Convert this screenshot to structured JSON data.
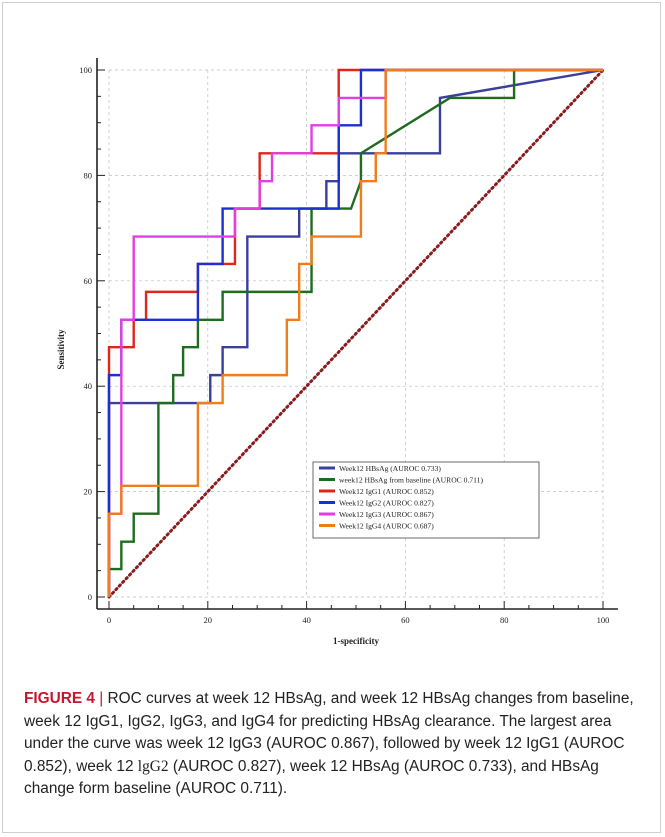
{
  "chart_data": {
    "type": "line",
    "xlabel": "1-specificity",
    "ylabel": "Sensitivity",
    "xlim": [
      0,
      100
    ],
    "ylim": [
      0,
      100
    ],
    "x_ticks": [
      0,
      20,
      40,
      60,
      80,
      100
    ],
    "y_ticks": [
      0,
      20,
      40,
      60,
      80,
      100
    ],
    "x_tick_labels": [
      "0",
      "20",
      "40",
      "60",
      "80",
      "100"
    ],
    "y_tick_labels": [
      "0",
      "20",
      "40",
      "60",
      "80",
      "100"
    ],
    "grid": true,
    "legend_position": "bottom-right",
    "series": [
      {
        "name": "Week12 HBsAg (AUROC 0.733)",
        "color": "#3a3f9c",
        "x": [
          0,
          0,
          20.5,
          20.5,
          23,
          23,
          28,
          28,
          38.5,
          38.5,
          44,
          44,
          46.5,
          46.5,
          56,
          56,
          67,
          67,
          100
        ],
        "y": [
          0,
          36.8,
          36.8,
          42.1,
          42.1,
          47.4,
          47.4,
          68.4,
          68.4,
          73.7,
          73.7,
          78.9,
          78.9,
          84.2,
          84.2,
          84.2,
          84.2,
          94.7,
          100
        ]
      },
      {
        "name": "week12 HBsAg from baseline (AUROC 0.711)",
        "color": "#1f6b1f",
        "x": [
          0,
          0,
          2.5,
          2.5,
          5,
          5,
          10,
          10,
          13,
          13,
          15,
          15,
          18,
          18,
          23,
          23,
          41,
          41,
          49,
          51,
          51,
          69,
          82,
          82,
          100
        ],
        "y": [
          0,
          5.3,
          5.3,
          10.5,
          10.5,
          15.8,
          15.8,
          36.8,
          36.8,
          42.1,
          42.1,
          47.4,
          47.4,
          52.6,
          52.6,
          57.9,
          57.9,
          73.7,
          73.7,
          78.9,
          84.2,
          94.7,
          94.7,
          100,
          100
        ]
      },
      {
        "name": "Week12 IgG1 (AUROC 0.852)",
        "color": "#e0251b",
        "x": [
          0,
          0,
          5,
          5,
          7.5,
          7.5,
          18,
          18,
          25.5,
          25.5,
          30.5,
          30.5,
          46.5,
          46.5,
          100
        ],
        "y": [
          0,
          47.4,
          47.4,
          52.6,
          52.6,
          57.9,
          57.9,
          63.2,
          63.2,
          73.7,
          73.7,
          84.2,
          84.2,
          100,
          100
        ]
      },
      {
        "name": "Week12 IgG2 (AUROC 0.827)",
        "color": "#1c2fd1",
        "x": [
          0,
          0,
          2.5,
          2.5,
          18,
          18,
          23,
          23,
          46.5,
          46.5,
          51,
          51,
          100
        ],
        "y": [
          0,
          42.1,
          42.1,
          52.6,
          52.6,
          63.2,
          63.2,
          73.7,
          73.7,
          89.5,
          89.5,
          100,
          100
        ]
      },
      {
        "name": "Week12 IgG3 (AUROC 0.867)",
        "color": "#e23fe0",
        "x": [
          0,
          0,
          2.5,
          2.5,
          5,
          5,
          25.5,
          25.5,
          30.5,
          30.5,
          33,
          33,
          41,
          41,
          46.5,
          46.5,
          49,
          49,
          56,
          56,
          100
        ],
        "y": [
          0,
          15.8,
          15.8,
          52.6,
          52.6,
          68.4,
          68.4,
          73.7,
          73.7,
          78.9,
          78.9,
          84.2,
          84.2,
          89.5,
          89.5,
          94.7,
          94.7,
          94.7,
          94.7,
          100,
          100
        ]
      },
      {
        "name": "Week12 IgG4 (AUROC 0.687)",
        "color": "#f07d1a",
        "x": [
          0,
          0,
          2.5,
          2.5,
          18,
          18,
          23,
          23,
          36,
          36,
          38.5,
          38.5,
          41,
          41,
          51,
          51,
          54,
          54,
          56,
          56,
          100
        ],
        "y": [
          0,
          15.8,
          15.8,
          21.1,
          21.1,
          36.8,
          36.8,
          42.1,
          42.1,
          52.6,
          52.6,
          63.2,
          63.2,
          68.4,
          68.4,
          78.9,
          78.9,
          84.2,
          84.2,
          100,
          100
        ]
      }
    ],
    "reference_line": {
      "x": [
        0,
        100
      ],
      "y": [
        0,
        100
      ],
      "color": "#8b1c1c"
    }
  },
  "caption": {
    "label": "FIGURE 4",
    "separator": "|",
    "text_part1": "ROC curves at week 12 HBsAg, and week 12 HBsAg changes from baseline, week 12 IgG1, IgG2, IgG3, and IgG4 for predicting HBsAg clearance. The largest area under the curve was week 12 IgG3 (AUROC 0.867), followed by week 12 IgG1 (AUROC 0.852), week 12 ",
    "text_lgg2": "lgG2",
    "text_part2": " (AUROC 0.827), week 12 HBsAg (AUROC 0.733), and HBsAg change form baseline (AUROC 0.711)."
  }
}
